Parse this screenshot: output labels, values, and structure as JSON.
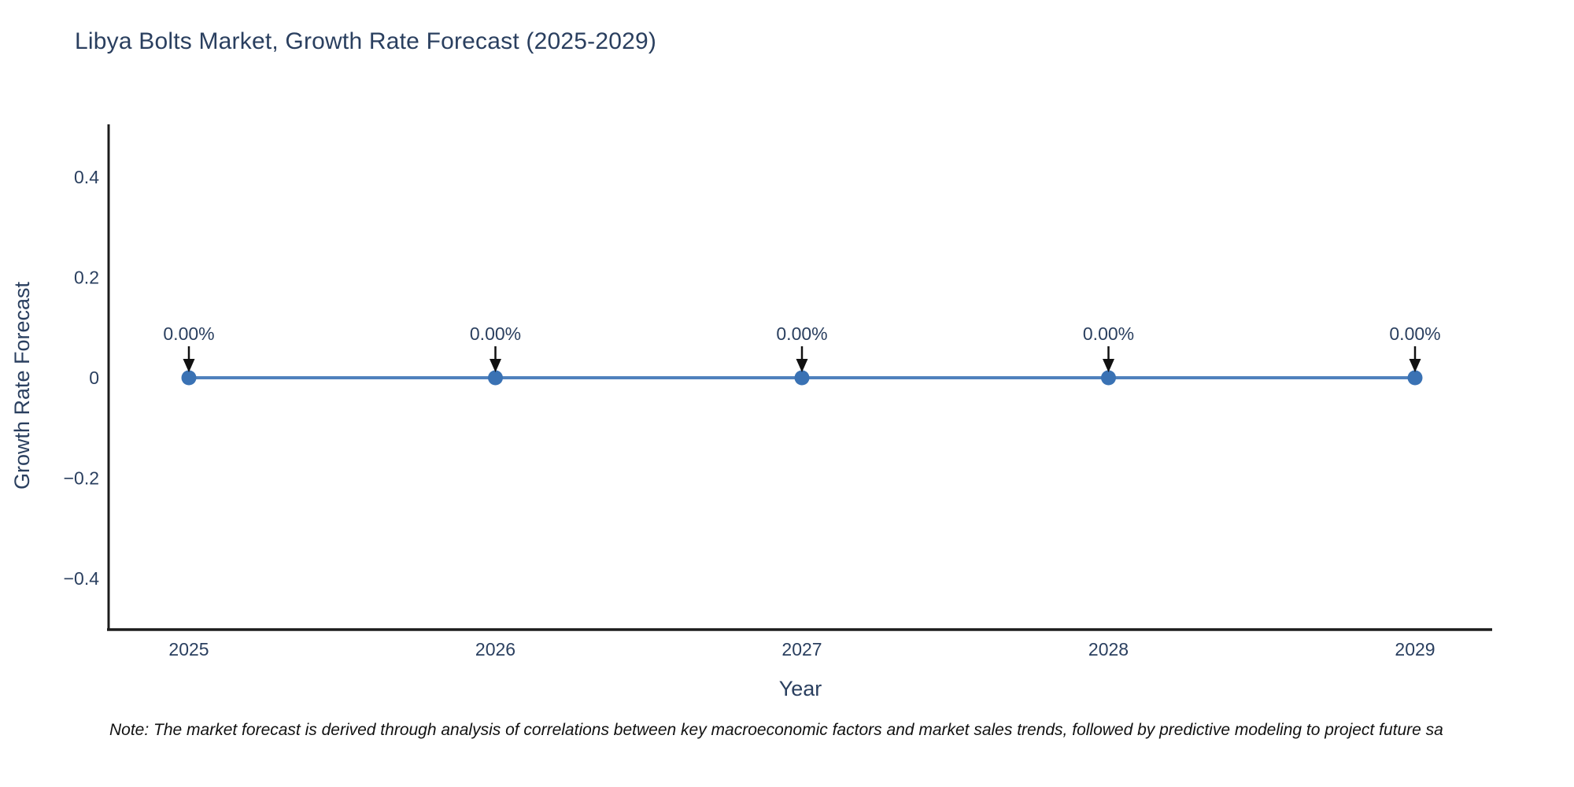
{
  "chart_data": {
    "type": "line",
    "title": "Libya Bolts Market, Growth Rate Forecast (2025-2029)",
    "xlabel": "Year",
    "ylabel": "Growth Rate Forecast",
    "x": [
      2025,
      2026,
      2027,
      2028,
      2029
    ],
    "values": [
      0,
      0,
      0,
      0,
      0
    ],
    "point_labels": [
      "0.00%",
      "0.00%",
      "0.00%",
      "0.00%",
      "0.00%"
    ],
    "ytick_labels": [
      "0.4",
      "0.2",
      "0",
      "−0.2",
      "−0.4"
    ],
    "yticks": [
      0.4,
      0.2,
      0,
      -0.2,
      -0.4
    ],
    "ylim": [
      -0.5,
      0.5
    ],
    "grid": false,
    "legend": "none",
    "colors": {
      "line": "#4f81bd",
      "marker": "#3a72b4",
      "axis": "#1c1c1c",
      "tick_text": "#2a3f5f",
      "annotation_text": "#2a3f5f",
      "annotation_arrow": "#111111"
    }
  },
  "note": "Note: The market forecast is derived through analysis of correlations between key macroeconomic factors and market sales trends, followed by predictive modeling to project future sa"
}
